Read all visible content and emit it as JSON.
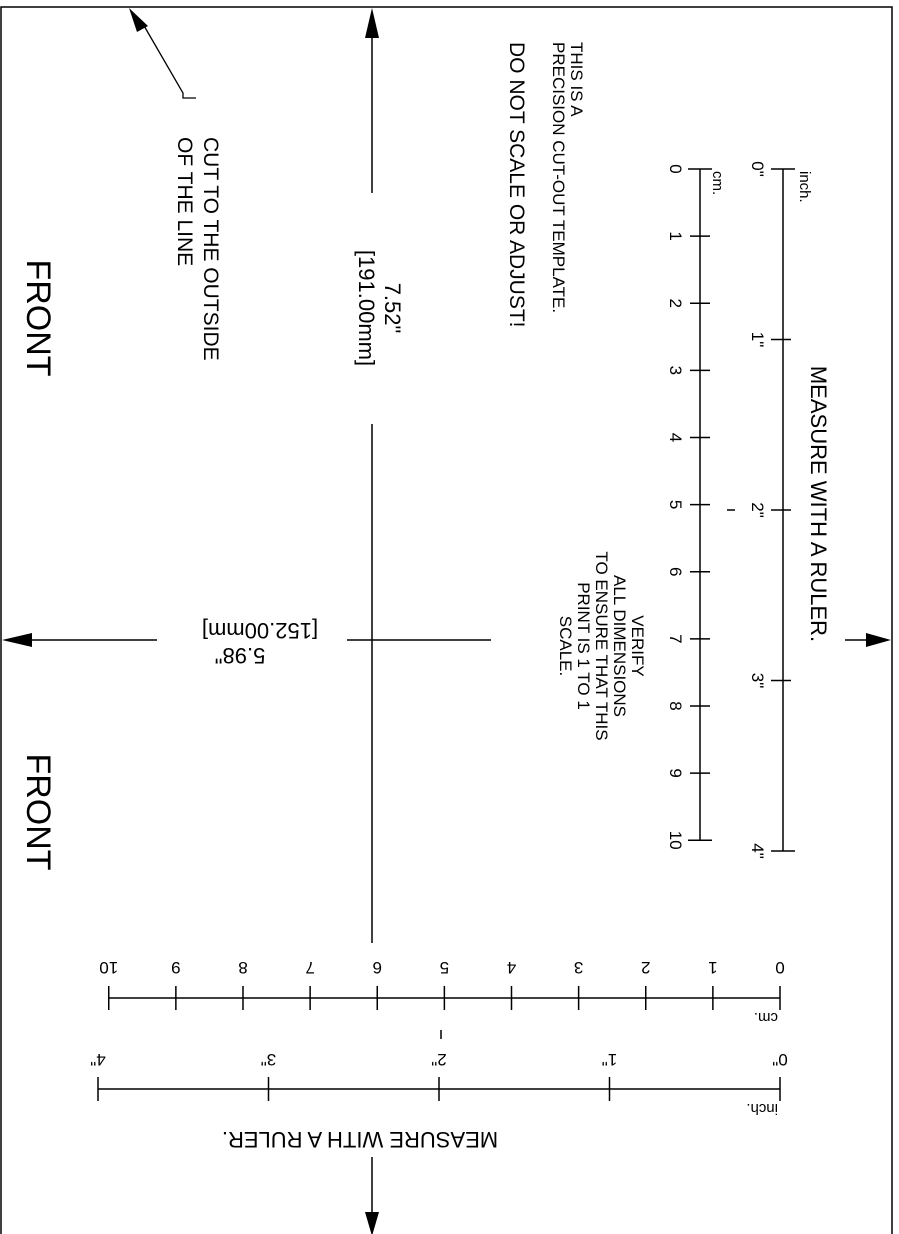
{
  "front_label": "FRONT",
  "cut_note": [
    "CUT TO THE OUTSIDE",
    "OF THE LINE"
  ],
  "precision_note": [
    "THIS IS A",
    "PRECISION CUT-OUT TEMPLATE.",
    "DO NOT SCALE OR ADJUST!"
  ],
  "verify_note": [
    "VERIFY",
    "ALL DIMENSIONS",
    "TO ENSURE THAT THIS",
    "PRINT IS 1 TO 1",
    "SCALE."
  ],
  "dim_height": {
    "inches": "7.52\"",
    "mm": "[191.00mm]"
  },
  "dim_width": {
    "inches": "5.98\"",
    "mm": "[152.00mm]"
  },
  "ruler": {
    "title": "MEASURE WITH A RULER.",
    "inch_unit": "inch.",
    "cm_unit": "cm.",
    "inch_labels": [
      "0\"",
      "1\"",
      "2\"",
      "3\"",
      "4\""
    ],
    "cm_labels": [
      "0",
      "1",
      "2",
      "3",
      "4",
      "5",
      "6",
      "7",
      "8",
      "9",
      "10"
    ]
  }
}
